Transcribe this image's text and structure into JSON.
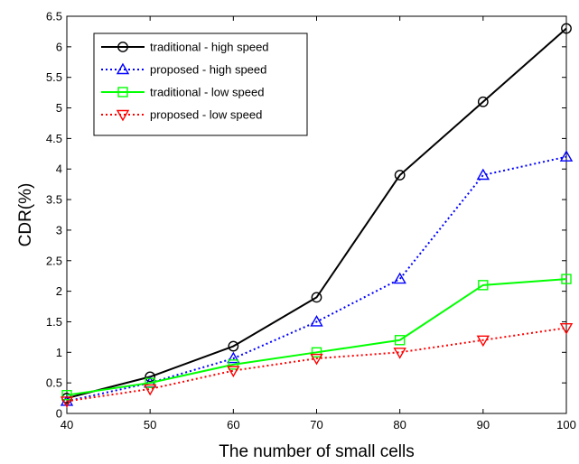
{
  "chart_data": {
    "type": "line",
    "xlabel": "The number of small cells",
    "ylabel": "CDR(%)",
    "x": [
      40,
      50,
      60,
      70,
      80,
      90,
      100
    ],
    "xlim": [
      40,
      100
    ],
    "ylim": [
      0,
      6.5
    ],
    "xticks": [
      "40",
      "50",
      "60",
      "70",
      "80",
      "90",
      "100"
    ],
    "yticks": [
      "0",
      "0.5",
      "1",
      "1.5",
      "2",
      "2.5",
      "3",
      "3.5",
      "4",
      "4.5",
      "5",
      "5.5",
      "6",
      "6.5"
    ],
    "legend_position": "top-left",
    "grid": false,
    "series": [
      {
        "name": "traditional - high speed",
        "values": [
          0.25,
          0.6,
          1.1,
          1.9,
          3.9,
          5.1,
          6.3
        ],
        "color": "#000000",
        "dash": "solid",
        "marker": "circle"
      },
      {
        "name": "proposed - high speed",
        "values": [
          0.2,
          0.5,
          0.9,
          1.5,
          2.2,
          3.9,
          4.2
        ],
        "color": "#0000ff",
        "dash": "dotted",
        "marker": "triangle-up"
      },
      {
        "name": "traditional - low speed",
        "values": [
          0.3,
          0.5,
          0.8,
          1.0,
          1.2,
          2.1,
          2.2
        ],
        "color": "#00ff00",
        "dash": "solid",
        "marker": "square"
      },
      {
        "name": "proposed - low speed",
        "values": [
          0.2,
          0.4,
          0.7,
          0.9,
          1.0,
          1.2,
          1.4
        ],
        "color": "#ff0000",
        "dash": "dotted",
        "marker": "triangle-down"
      }
    ]
  }
}
